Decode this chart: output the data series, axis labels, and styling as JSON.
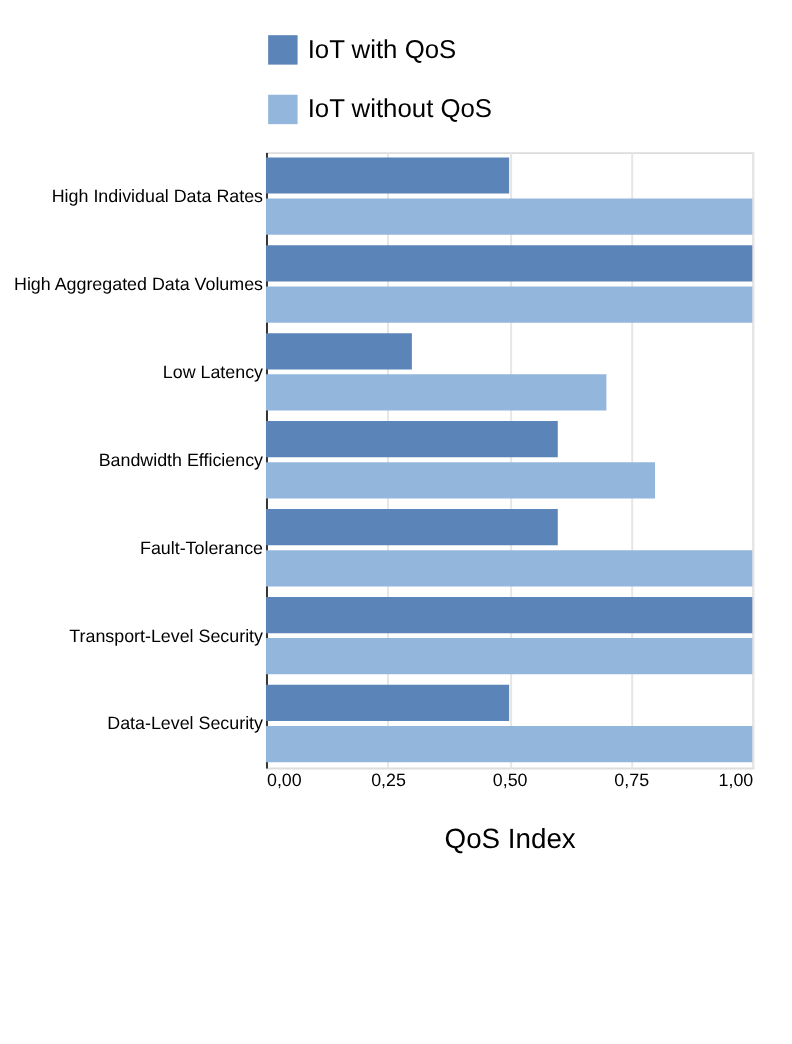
{
  "chart_data": {
    "type": "bar",
    "orientation": "horizontal",
    "xlabel": "QoS Index",
    "categories": [
      "High Individual Data Rates",
      "High Aggregated Data Volumes",
      "Low Latency",
      "Bandwidth Efficiency",
      "Fault-Tolerance",
      "Transport-Level Security",
      "Data-Level Security"
    ],
    "series": [
      {
        "name": "IoT with QoS",
        "color": "#5b84b8",
        "values": [
          0.5,
          1.0,
          0.3,
          0.6,
          0.6,
          1.0,
          0.5
        ]
      },
      {
        "name": "IoT without QoS",
        "color": "#93b6dc",
        "values": [
          1.0,
          1.0,
          0.7,
          0.8,
          1.0,
          1.0,
          1.0
        ]
      }
    ],
    "xlim": [
      0,
      1
    ],
    "xticks": [
      {
        "value": 0,
        "label": "0,00"
      },
      {
        "value": 0.25,
        "label": "0,25"
      },
      {
        "value": 0.5,
        "label": "0,50"
      },
      {
        "value": 0.75,
        "label": "0,75"
      },
      {
        "value": 1,
        "label": "1,00"
      }
    ],
    "grid": "x",
    "legend": "top"
  }
}
